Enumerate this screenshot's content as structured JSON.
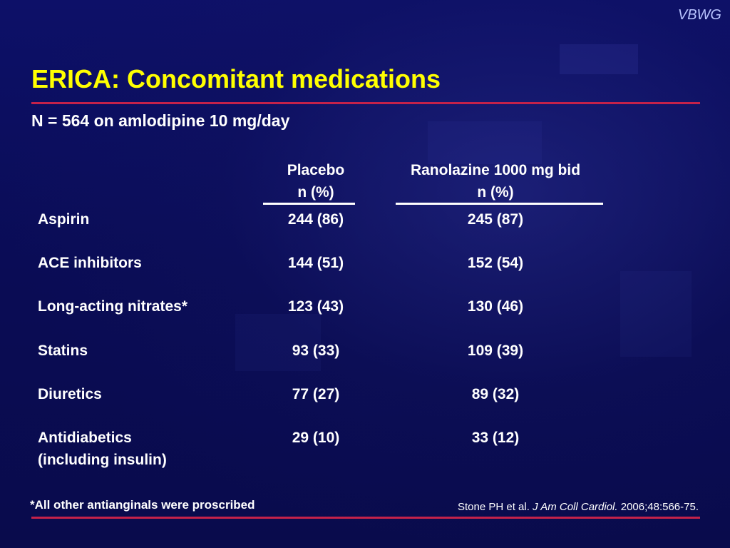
{
  "brand": "VBWG",
  "title": "ERICA: Concomitant medications",
  "subtitle": "N = 564 on amlodipine 10 mg/day",
  "columns": {
    "placebo": {
      "line1": "Placebo",
      "line2": "n (%)"
    },
    "ranolazine": {
      "line1": "Ranolazine 1000 mg bid",
      "line2": "n (%)"
    }
  },
  "rows": [
    {
      "label": "Aspirin",
      "label2": "",
      "placebo": "244 (86)",
      "ranolazine": "245 (87)"
    },
    {
      "label": "ACE inhibitors",
      "label2": "",
      "placebo": "144 (51)",
      "ranolazine": "152 (54)"
    },
    {
      "label": "Long-acting nitrates*",
      "label2": "",
      "placebo": "123 (43)",
      "ranolazine": "130 (46)"
    },
    {
      "label": "Statins",
      "label2": "",
      "placebo": "93 (33)",
      "ranolazine": "109 (39)"
    },
    {
      "label": "Diuretics",
      "label2": "",
      "placebo": "77 (27)",
      "ranolazine": "89 (32)"
    },
    {
      "label": "Antidiabetics",
      "label2": "(including insulin)",
      "placebo": "29 (10)",
      "ranolazine": "33 (12)"
    }
  ],
  "footnote": "*All other antianginals were proscribed",
  "citation": {
    "authors": "Stone PH et al.",
    "journal": "J Am Coll Cardiol.",
    "details": "2006;48:566-75."
  },
  "colors": {
    "background": "#0b0d5e",
    "title": "#ffff00",
    "rule": "#c4224a",
    "text": "#ffffff",
    "brand": "#b9c4ff"
  }
}
